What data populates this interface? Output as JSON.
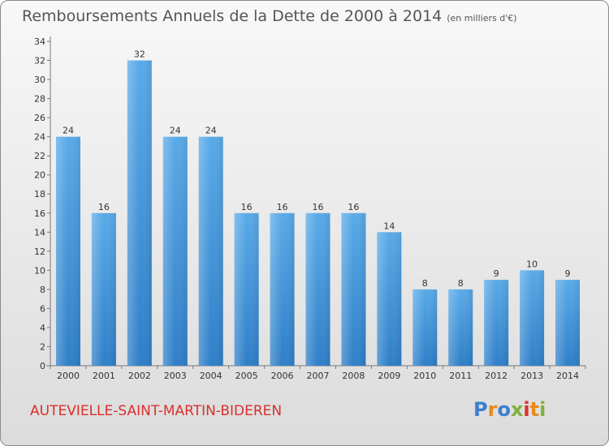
{
  "chart_data": {
    "type": "bar",
    "title": "Remboursements Annuels de la Dette de 2000 à 2014",
    "subtitle": "(en milliers d'€)",
    "categories": [
      "2000",
      "2001",
      "2002",
      "2003",
      "2004",
      "2005",
      "2006",
      "2007",
      "2008",
      "2009",
      "2010",
      "2011",
      "2012",
      "2013",
      "2014"
    ],
    "values": [
      24,
      16,
      32,
      24,
      24,
      16,
      16,
      16,
      16,
      14,
      8,
      8,
      9,
      10,
      9
    ],
    "ylim": [
      0,
      34
    ],
    "yticks": [
      0,
      2,
      4,
      6,
      8,
      10,
      12,
      14,
      16,
      18,
      20,
      22,
      24,
      26,
      28,
      30,
      32,
      34
    ],
    "grid": false,
    "xlabel": "",
    "ylabel": "",
    "bar_color": "#4f9be0"
  },
  "footer": {
    "commune": "AUTEVIELLE-SAINT-MARTIN-BIDEREN",
    "logo": [
      "P",
      "r",
      "o",
      "x",
      "i",
      "t",
      "i"
    ],
    "logo_colors": [
      "#3a7fd1",
      "#e98a1a",
      "#3a7fd1",
      "#7fb03a",
      "#d9302b",
      "#e98a1a",
      "#7fb03a"
    ]
  }
}
